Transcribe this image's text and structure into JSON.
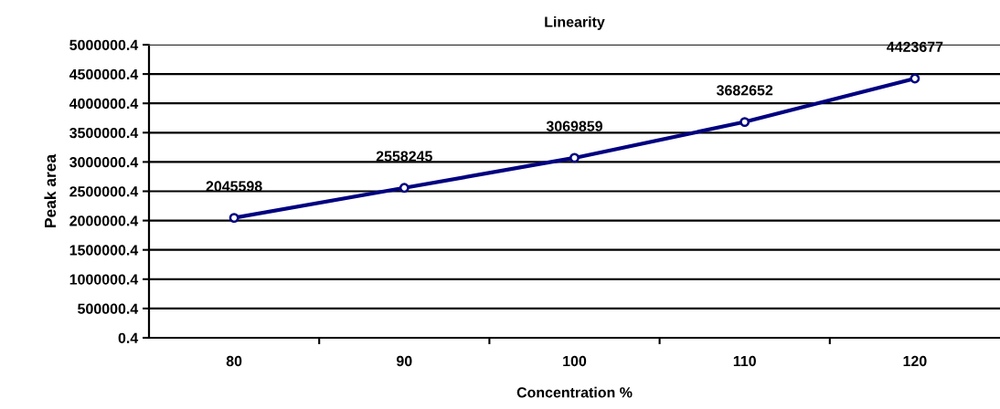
{
  "chart_data": {
    "type": "line",
    "title": "Linearity",
    "xlabel": "Concentration %",
    "ylabel": "Peak area",
    "categories": [
      "80",
      "90",
      "100",
      "110",
      "120"
    ],
    "series": [
      {
        "color": "#000080",
        "values": [
          2045598,
          2558245,
          3069859,
          3682652,
          4423677
        ]
      }
    ],
    "ylim": [
      0.4,
      5000000.4
    ],
    "yticks": [
      0.4,
      500000.4,
      1000000.4,
      1500000.4,
      2000000.4,
      2500000.4,
      3000000.4,
      3500000.4,
      4000000.4,
      4500000.4,
      5000000.4
    ],
    "grid": "y",
    "marker": "circle",
    "line_style": "solid",
    "data_labels": true,
    "legend": false
  }
}
